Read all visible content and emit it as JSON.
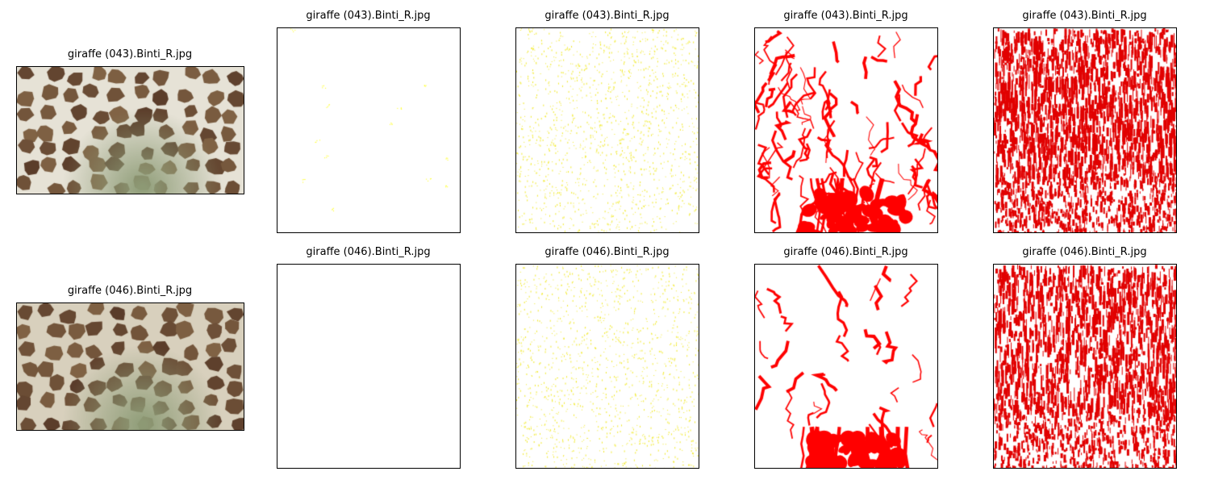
{
  "rows": [
    {
      "titles": [
        "giraffe (043).Binti_R.jpg",
        "giraffe (043).Binti_R.jpg",
        "giraffe (043).Binti_R.jpg",
        "giraffe (043).Binti_R.jpg",
        "giraffe (043).Binti_R.jpg"
      ]
    },
    {
      "titles": [
        "giraffe (046).Binti_R.jpg",
        "giraffe (046).Binti_R.jpg",
        "giraffe (046).Binti_R.jpg",
        "giraffe (046).Binti_R.jpg",
        "giraffe (046).Binti_R.jpg"
      ]
    }
  ],
  "colors": {
    "mask_yellow": "#ffff00",
    "mask_red": "#ff0000",
    "giraffe_patch_dark": "#5a3a26",
    "giraffe_net_light": "#e6e2d6",
    "giraffe_belly_green": "#8f9d78"
  },
  "panel_types": [
    "giraffe-photo",
    "sparse-yellow-mask",
    "dense-yellow-mask",
    "red-blob-mask",
    "red-texture-mask"
  ]
}
